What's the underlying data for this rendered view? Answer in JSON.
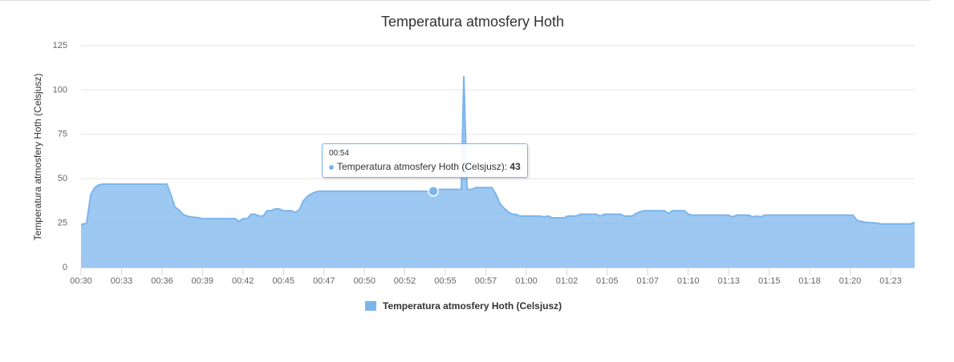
{
  "chart_data": {
    "type": "area",
    "title": "Temperatura atmosfery Hoth",
    "y_label": "Temperatura atmosfery Hoth (Celsjusz)",
    "x": [
      30.0,
      30.38,
      30.66,
      30.93,
      31.2,
      31.48,
      35.85,
      36.12,
      36.4,
      36.67,
      36.94,
      37.22,
      37.49,
      38.04,
      38.31,
      40.5,
      40.77,
      41.04,
      41.32,
      41.59,
      41.86,
      42.14,
      42.41,
      42.68,
      42.96,
      43.23,
      43.5,
      43.78,
      44.32,
      44.6,
      44.87,
      45.14,
      45.42,
      45.69,
      45.96,
      46.24,
      46.51,
      54.0,
      54.44,
      55.91,
      56.08,
      56.3,
      56.63,
      56.9,
      57.99,
      58.26,
      58.54,
      58.81,
      59.08,
      59.36,
      59.63,
      59.9,
      61.27,
      61.55,
      61.82,
      62.09,
      62.91,
      63.18,
      63.73,
      64.01,
      65.1,
      65.37,
      65.64,
      66.74,
      67.01,
      67.56,
      67.83,
      68.11,
      68.38,
      69.75,
      70.02,
      70.29,
      71.11,
      71.38,
      71.66,
      74.12,
      74.39,
      74.67,
      75.49,
      75.76,
      76.03,
      76.31,
      76.58,
      82.59,
      82.87,
      83.14,
      83.41,
      84.23,
      84.51,
      86.53,
      86.8
    ],
    "series": [
      {
        "name": "Temperatura atmosfery Hoth (Celsjusz)",
        "color": "#7cb5ec",
        "values": [
          24,
          25,
          41,
          45,
          46.5,
          47,
          47,
          41,
          34,
          32.5,
          30,
          29,
          28.5,
          28,
          27.5,
          27.5,
          26,
          27.5,
          27.5,
          30,
          30,
          29,
          29,
          32,
          32,
          33,
          33,
          32,
          32,
          31,
          32.5,
          37.5,
          40,
          41.5,
          42.5,
          43,
          43,
          43,
          44,
          44,
          108,
          44,
          44,
          45,
          45,
          41.5,
          36,
          33.5,
          31.5,
          30,
          30,
          29,
          29,
          28.5,
          29,
          28,
          28,
          29,
          29,
          30,
          30,
          29,
          30,
          30,
          29,
          29,
          30.5,
          31.5,
          32,
          32,
          30.5,
          32,
          32,
          30,
          29.5,
          29.5,
          28.5,
          29.5,
          29.5,
          28.5,
          29,
          28.5,
          29.5,
          29.5,
          26.5,
          26,
          25.5,
          25,
          24.5,
          24.5,
          25.5
        ]
      }
    ],
    "xlim": [
      30,
      86.8
    ],
    "xticks": [
      {
        "value": 30,
        "label": "00:30"
      },
      {
        "value": 32.76,
        "label": "00:33"
      },
      {
        "value": 35.52,
        "label": "00:36"
      },
      {
        "value": 38.27,
        "label": "00:39"
      },
      {
        "value": 41.03,
        "label": "00:42"
      },
      {
        "value": 43.79,
        "label": "00:45"
      },
      {
        "value": 46.55,
        "label": "00:47"
      },
      {
        "value": 49.31,
        "label": "00:50"
      },
      {
        "value": 52.06,
        "label": "00:52"
      },
      {
        "value": 54.82,
        "label": "00:55"
      },
      {
        "value": 57.58,
        "label": "00:57"
      },
      {
        "value": 60.34,
        "label": "01:00"
      },
      {
        "value": 63.1,
        "label": "01:02"
      },
      {
        "value": 65.85,
        "label": "01:05"
      },
      {
        "value": 68.61,
        "label": "01:07"
      },
      {
        "value": 71.37,
        "label": "01:10"
      },
      {
        "value": 74.13,
        "label": "01:13"
      },
      {
        "value": 76.89,
        "label": "01:15"
      },
      {
        "value": 79.64,
        "label": "01:18"
      },
      {
        "value": 82.4,
        "label": "01:20"
      },
      {
        "value": 85.16,
        "label": "01:23"
      }
    ],
    "ylim": [
      0,
      125
    ],
    "yticks": [
      0,
      25,
      50,
      75,
      100,
      125
    ],
    "grid": true,
    "legend": "bottom",
    "tooltip": {
      "header": "00:54",
      "x": 54
    }
  }
}
